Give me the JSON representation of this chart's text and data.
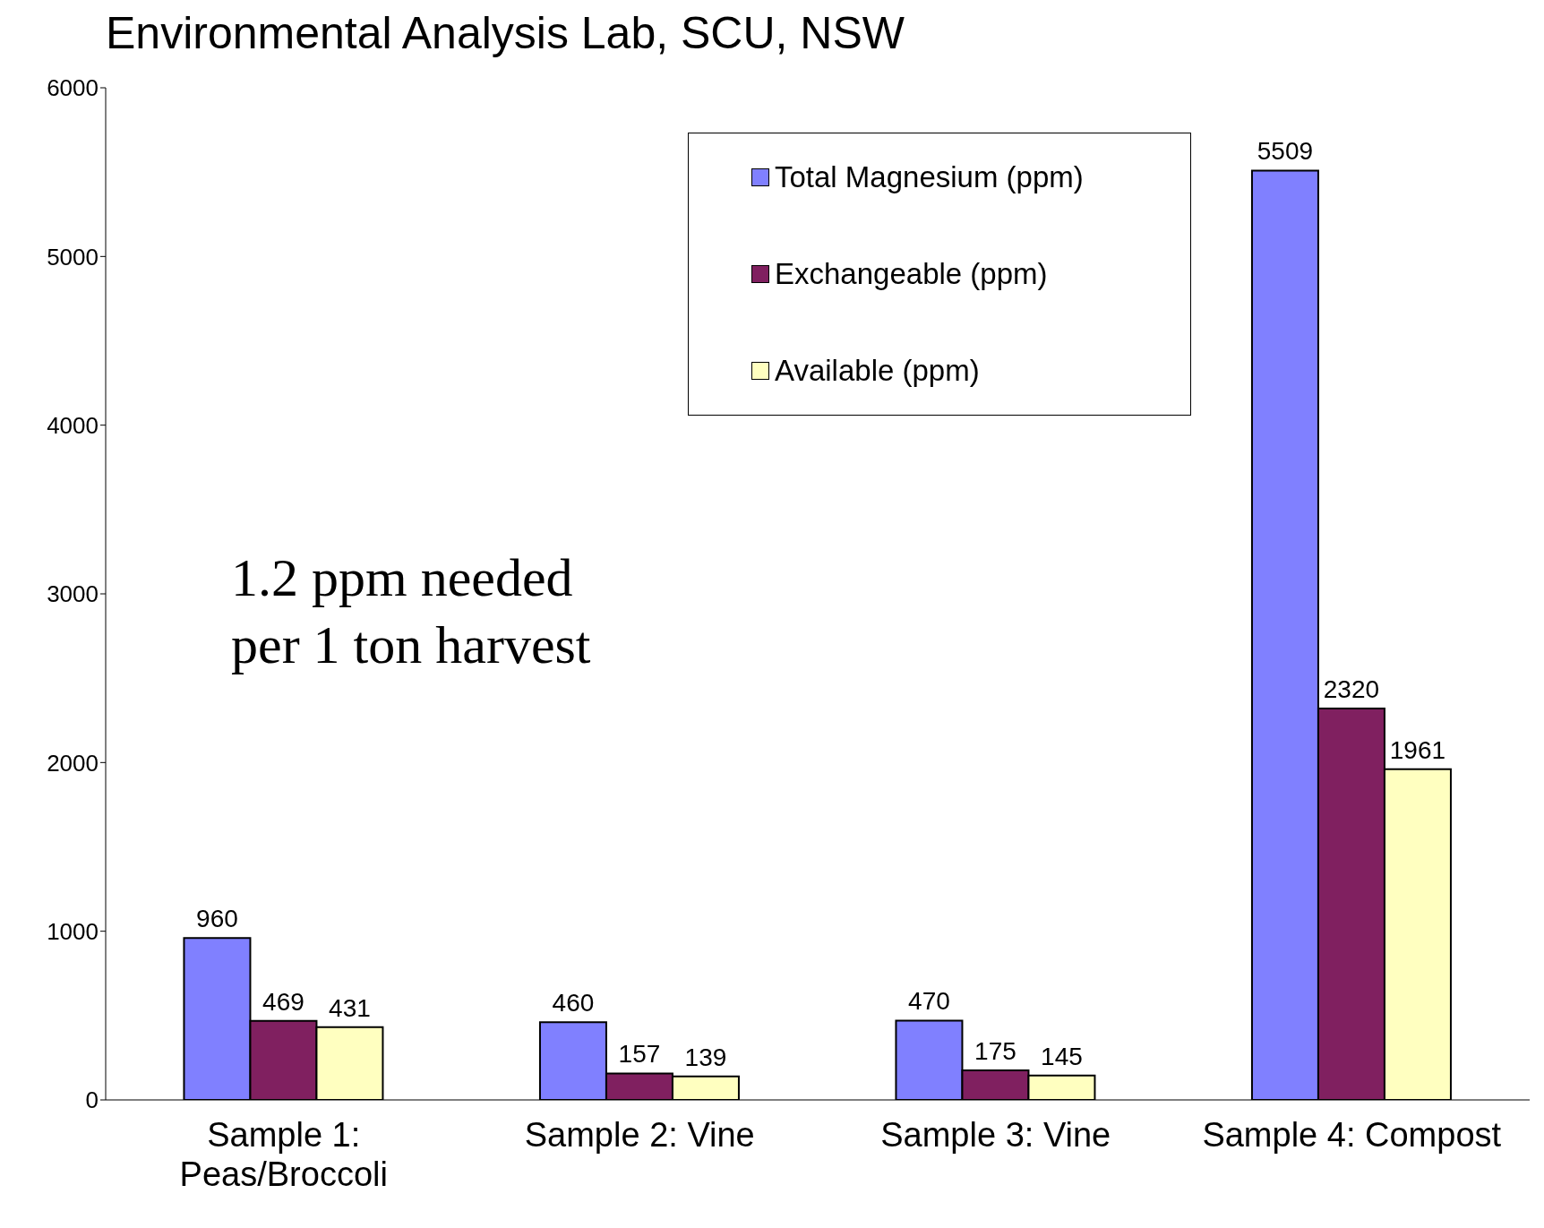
{
  "chart_data": {
    "type": "bar",
    "title": "Environmental Analysis Lab, SCU, NSW",
    "categories": [
      "Sample 1: Peas/Broccoli",
      "Sample 2: Vine",
      "Sample 3: Vine",
      "Sample 4: Compost"
    ],
    "series": [
      {
        "name": "Total Magnesium (ppm)",
        "color": "#8080ff",
        "values": [
          960,
          460,
          470,
          5509
        ]
      },
      {
        "name": "Exchangeable (ppm)",
        "color": "#802060",
        "values": [
          469,
          157,
          175,
          2320
        ]
      },
      {
        "name": "Available (ppm)",
        "color": "#ffffc0",
        "values": [
          431,
          139,
          145,
          1961
        ]
      }
    ],
    "ylim": [
      0,
      6000
    ],
    "yticks": [
      0,
      1000,
      2000,
      3000,
      4000,
      5000,
      6000
    ],
    "grid": false,
    "legend": "top right",
    "data_labels": true,
    "annotations": [
      "1.2 ppm needed per 1 ton harvest"
    ]
  }
}
